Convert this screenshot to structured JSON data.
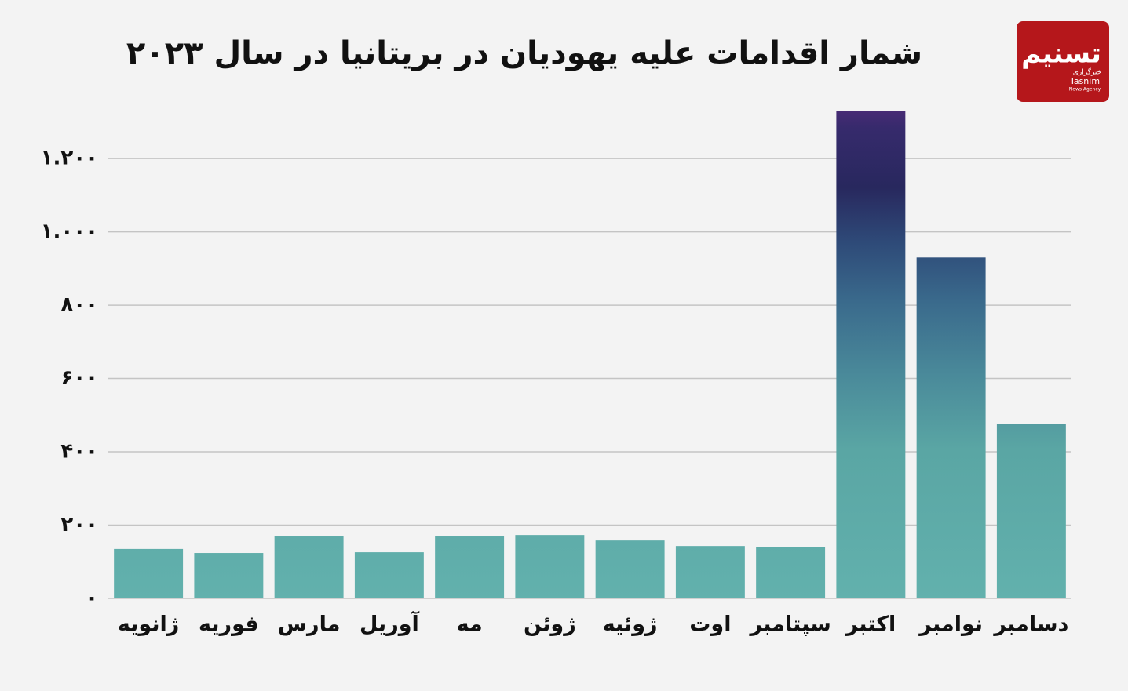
{
  "chart_data": {
    "type": "bar",
    "title": "شمار اقدامات علیه یهودیان در بریتانیا در سال ۲۰۲۳",
    "categories": [
      "ژانویه",
      "فوریه",
      "مارس",
      "آوریل",
      "مه",
      "ژوئن",
      "ژوئیه",
      "اوت",
      "سپتامبر",
      "اکتبر",
      "نوامبر",
      "دسامبر"
    ],
    "values": [
      135,
      124,
      169,
      126,
      169,
      173,
      158,
      143,
      141,
      1330,
      930,
      475
    ],
    "ylim": [
      0,
      1350
    ],
    "yticks": [
      {
        "value": 0,
        "label": "۰"
      },
      {
        "value": 200,
        "label": "۲۰۰"
      },
      {
        "value": 400,
        "label": "۴۰۰"
      },
      {
        "value": 600,
        "label": "۶۰۰"
      },
      {
        "value": 800,
        "label": "۸۰۰"
      },
      {
        "value": 1000,
        "label": "۱.۰۰۰"
      },
      {
        "value": 1200,
        "label": "۱.۲۰۰"
      }
    ],
    "grid": true
  },
  "logo": {
    "name": "تسنیم",
    "agency": "خبرگزاری",
    "latin": "Tasnim",
    "subtitle": "News Agency"
  }
}
